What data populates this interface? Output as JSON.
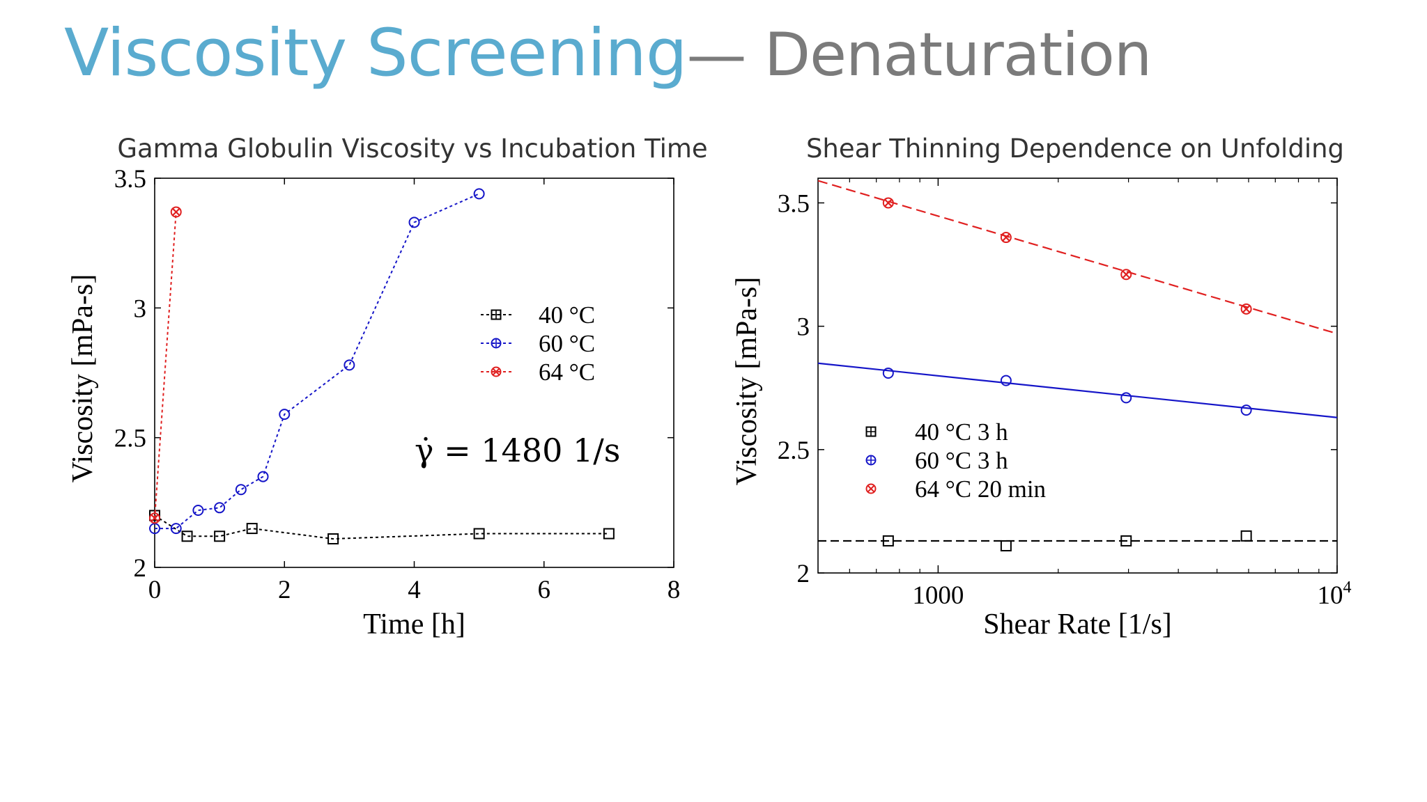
{
  "slide": {
    "title_main": "Viscosity Screening",
    "title_sub": "— Denaturation"
  },
  "chart_data": [
    {
      "type": "line",
      "title": "Gamma Globulin Viscosity vs Incubation Time",
      "xlabel": "Time [h]",
      "ylabel": "Viscosity [mPa-s]",
      "xlim": [
        0,
        8
      ],
      "ylim": [
        2,
        3.5
      ],
      "xticks": [
        "0",
        "2",
        "4",
        "6",
        "8"
      ],
      "yticks": [
        "2",
        "2.5",
        "3",
        "3.5"
      ],
      "grid": false,
      "legend_position": "upper-right",
      "annotation": "γ̇ = 1480 1/s",
      "series": [
        {
          "name": "40 °C",
          "color": "#000000",
          "marker": "square",
          "x": [
            0,
            0.5,
            1,
            1.5,
            2.75,
            5,
            7
          ],
          "y": [
            2.2,
            2.12,
            2.12,
            2.15,
            2.11,
            2.13,
            2.13
          ]
        },
        {
          "name": "60 °C",
          "color": "#1515c8",
          "marker": "circle",
          "x": [
            0,
            0.33,
            0.67,
            1,
            1.33,
            1.67,
            2,
            3,
            4,
            5
          ],
          "y": [
            2.15,
            2.15,
            2.22,
            2.23,
            2.3,
            2.35,
            2.59,
            2.78,
            3.33,
            3.44
          ]
        },
        {
          "name": "64 °C",
          "color": "#e02020",
          "marker": "x",
          "x": [
            0,
            0.33
          ],
          "y": [
            2.19,
            3.37
          ]
        }
      ]
    },
    {
      "type": "line",
      "title": "Shear Thinning Dependence on Unfolding",
      "xlabel": "Shear Rate [1/s]",
      "ylabel": "Viscosity [mPa-s]",
      "xscale": "log",
      "xlim": [
        500,
        10000
      ],
      "ylim": [
        2,
        3.6
      ],
      "xticks": [
        {
          "value": 1000,
          "label": "1000",
          "sup": ""
        },
        {
          "value": 10000,
          "label": "10",
          "sup": "4"
        }
      ],
      "yticks": [
        "2",
        "2.5",
        "3",
        "3.5"
      ],
      "grid": false,
      "legend_position": "lower-left",
      "series": [
        {
          "name": "40 °C 3 h",
          "color": "#000000",
          "marker": "square",
          "x": [
            750,
            1480,
            2960,
            5920
          ],
          "y": [
            2.13,
            2.11,
            2.13,
            2.15
          ],
          "fit": [
            [
              500,
              2.13
            ],
            [
              10000,
              2.13
            ]
          ]
        },
        {
          "name": "60 °C 3 h",
          "color": "#1515c8",
          "marker": "circle",
          "x": [
            750,
            1480,
            2960,
            5920
          ],
          "y": [
            2.81,
            2.78,
            2.71,
            2.66
          ],
          "fit": [
            [
              500,
              2.85
            ],
            [
              10000,
              2.63
            ]
          ]
        },
        {
          "name": "64 °C 20 min",
          "color": "#e02020",
          "marker": "x",
          "x": [
            750,
            1480,
            2960,
            5920
          ],
          "y": [
            3.5,
            3.36,
            3.21,
            3.07
          ],
          "fit": [
            [
              500,
              3.59
            ],
            [
              10000,
              2.97
            ]
          ]
        }
      ]
    }
  ]
}
